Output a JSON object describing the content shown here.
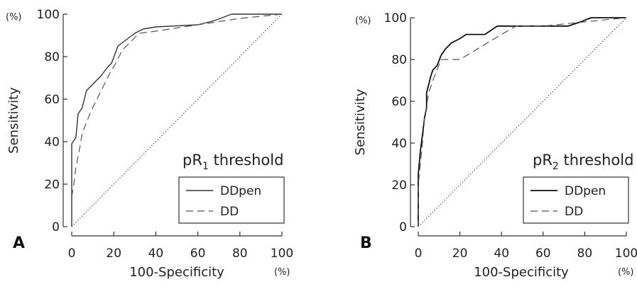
{
  "chart_data": [
    {
      "type": "line",
      "panel_label": "A",
      "xlabel": "100-Specificity",
      "ylabel": "Sensitivity",
      "x_unit": "(%)",
      "y_unit": "(%)",
      "xlim": [
        0,
        100
      ],
      "ylim": [
        0,
        100
      ],
      "xticks": [
        "0",
        "20",
        "40",
        "60",
        "80",
        "100"
      ],
      "yticks": [
        "0",
        "20",
        "40",
        "60",
        "80",
        "100"
      ],
      "legend_title": {
        "base": "pR",
        "sub": "1",
        "rest": " threshold"
      },
      "legend_position": "bottom-right",
      "series": [
        {
          "name": "DDpen",
          "style": "solid",
          "color": "#333333",
          "points": [
            [
              0,
              0
            ],
            [
              0,
              39
            ],
            [
              2,
              42
            ],
            [
              3,
              53
            ],
            [
              5,
              56
            ],
            [
              7,
              64
            ],
            [
              9,
              66
            ],
            [
              14,
              71
            ],
            [
              17,
              75
            ],
            [
              19,
              77
            ],
            [
              22,
              85
            ],
            [
              26,
              88
            ],
            [
              30,
              91
            ],
            [
              34,
              93
            ],
            [
              40,
              94
            ],
            [
              60,
              95
            ],
            [
              68,
              97
            ],
            [
              76,
              100
            ],
            [
              100,
              100
            ]
          ]
        },
        {
          "name": "DD",
          "style": "dashed",
          "color": "#555555",
          "points": [
            [
              0,
              14
            ],
            [
              1,
              20
            ],
            [
              2,
              28
            ],
            [
              3,
              33
            ],
            [
              4,
              38
            ],
            [
              5,
              44
            ],
            [
              7,
              49
            ],
            [
              9,
              54
            ],
            [
              12,
              60
            ],
            [
              15,
              66
            ],
            [
              18,
              72
            ],
            [
              21,
              77
            ],
            [
              24,
              83
            ],
            [
              28,
              87
            ],
            [
              32,
              91
            ],
            [
              40,
              92
            ],
            [
              60,
              95
            ],
            [
              80,
              98
            ],
            [
              100,
              100
            ]
          ]
        },
        {
          "name": "",
          "style": "dotted",
          "color": "#555555",
          "points": [
            [
              0,
              0
            ],
            [
              100,
              100
            ]
          ]
        }
      ]
    },
    {
      "type": "line",
      "panel_label": "B",
      "xlabel": "100-Specificity",
      "ylabel": "Sensitivity",
      "x_unit": "(%)",
      "y_unit": "(%)",
      "xlim": [
        0,
        100
      ],
      "ylim": [
        0,
        100
      ],
      "xticks": [
        "0",
        "20",
        "40",
        "60",
        "80",
        "100"
      ],
      "yticks": [
        "0",
        "20",
        "40",
        "60",
        "80",
        "100"
      ],
      "legend_title": {
        "base": "pR",
        "sub": "2",
        "rest": " threshold"
      },
      "legend_position": "bottom-right",
      "series": [
        {
          "name": "DDpen",
          "style": "solid",
          "color": "#111111",
          "points": [
            [
              0,
              0
            ],
            [
              0,
              25
            ],
            [
              1,
              36
            ],
            [
              2,
              44
            ],
            [
              3,
              52
            ],
            [
              4,
              57
            ],
            [
              4,
              64
            ],
            [
              6,
              72
            ],
            [
              7,
              75
            ],
            [
              9,
              77
            ],
            [
              11,
              82
            ],
            [
              13,
              85
            ],
            [
              16,
              88
            ],
            [
              20,
              90
            ],
            [
              23,
              92
            ],
            [
              32,
              92
            ],
            [
              35,
              94
            ],
            [
              38,
              96
            ],
            [
              48,
              96
            ],
            [
              72,
              96
            ],
            [
              75,
              97
            ],
            [
              78,
              98
            ],
            [
              83,
              100
            ],
            [
              100,
              100
            ]
          ]
        },
        {
          "name": "DD",
          "style": "dashed",
          "color": "#555555",
          "points": [
            [
              0,
              0
            ],
            [
              0,
              20
            ],
            [
              1,
              30
            ],
            [
              2,
              40
            ],
            [
              3,
              52
            ],
            [
              4,
              58
            ],
            [
              5,
              64
            ],
            [
              7,
              70
            ],
            [
              9,
              75
            ],
            [
              11,
              80
            ],
            [
              20,
              80
            ],
            [
              30,
              86
            ],
            [
              40,
              92
            ],
            [
              47,
              96
            ],
            [
              60,
              96
            ],
            [
              70,
              97
            ],
            [
              80,
              98
            ],
            [
              100,
              100
            ]
          ]
        },
        {
          "name": "",
          "style": "dotted",
          "color": "#555555",
          "points": [
            [
              0,
              0
            ],
            [
              100,
              100
            ]
          ]
        }
      ]
    }
  ]
}
